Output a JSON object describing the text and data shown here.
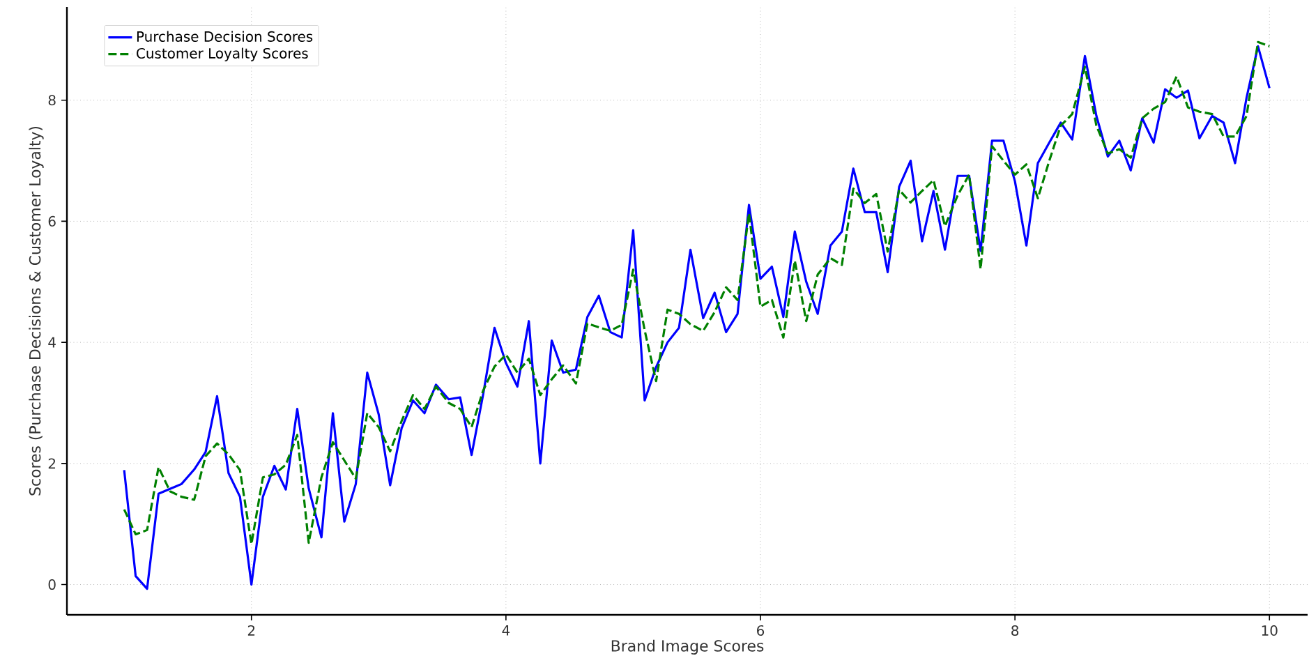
{
  "chart_data": {
    "type": "line",
    "xlabel": "Brand Image Scores",
    "ylabel": "Scores (Purchase Decisions & Customer Loyalty)",
    "x": [
      1.0,
      1.09,
      1.18,
      1.27,
      1.36,
      1.45,
      1.55,
      1.64,
      1.73,
      1.82,
      1.91,
      2.0,
      2.09,
      2.18,
      2.27,
      2.36,
      2.45,
      2.55,
      2.64,
      2.73,
      2.82,
      2.91,
      3.0,
      3.09,
      3.18,
      3.27,
      3.36,
      3.45,
      3.55,
      3.64,
      3.73,
      3.82,
      3.91,
      4.0,
      4.09,
      4.18,
      4.27,
      4.36,
      4.45,
      4.55,
      4.64,
      4.73,
      4.82,
      4.91,
      5.0,
      5.09,
      5.18,
      5.27,
      5.36,
      5.45,
      5.55,
      5.64,
      5.73,
      5.82,
      5.91,
      6.0,
      6.09,
      6.18,
      6.27,
      6.36,
      6.45,
      6.55,
      6.64,
      6.73,
      6.82,
      6.91,
      7.0,
      7.09,
      7.18,
      7.27,
      7.36,
      7.45,
      7.55,
      7.64,
      7.73,
      7.82,
      7.91,
      8.0,
      8.09,
      8.18,
      8.27,
      8.36,
      8.45,
      8.55,
      8.64,
      8.73,
      8.82,
      8.91,
      9.0,
      9.09,
      9.18,
      9.27,
      9.36,
      9.45,
      9.55,
      9.64,
      9.73,
      9.82,
      9.91,
      10.0
    ],
    "series": [
      {
        "name": "Purchase Decision Scores",
        "color": "#0000ff",
        "line_style": "solid",
        "values": [
          1.89,
          0.14,
          -0.07,
          1.5,
          1.58,
          1.66,
          1.9,
          2.19,
          3.11,
          1.84,
          1.45,
          0.0,
          1.45,
          1.96,
          1.57,
          2.9,
          1.59,
          0.78,
          2.83,
          1.04,
          1.66,
          3.5,
          2.81,
          1.64,
          2.58,
          3.04,
          2.83,
          3.3,
          3.06,
          3.09,
          2.14,
          3.13,
          4.24,
          3.66,
          3.27,
          4.35,
          2.0,
          4.03,
          3.5,
          3.55,
          4.42,
          4.77,
          4.17,
          4.08,
          5.85,
          3.04,
          3.59,
          4.0,
          4.24,
          5.53,
          4.4,
          4.82,
          4.17,
          4.47,
          6.27,
          5.05,
          5.25,
          4.42,
          5.83,
          5.0,
          4.47,
          5.6,
          5.83,
          6.87,
          6.15,
          6.15,
          5.16,
          6.57,
          7.0,
          5.67,
          6.5,
          5.53,
          6.75,
          6.75,
          5.51,
          7.33,
          7.33,
          6.66,
          5.6,
          6.96,
          7.3,
          7.63,
          7.35,
          8.73,
          7.74,
          7.07,
          7.33,
          6.84,
          7.7,
          7.3,
          8.18,
          8.04,
          8.16,
          7.37,
          7.74,
          7.63,
          6.96,
          8.04,
          8.89,
          8.2
        ]
      },
      {
        "name": "Customer Loyalty Scores",
        "color": "#008000",
        "line_style": "dashed",
        "values": [
          1.24,
          0.83,
          0.9,
          1.94,
          1.54,
          1.45,
          1.4,
          2.12,
          2.33,
          2.15,
          1.89,
          0.67,
          1.77,
          1.82,
          1.98,
          2.47,
          0.69,
          1.77,
          2.35,
          2.05,
          1.75,
          2.83,
          2.6,
          2.2,
          2.7,
          3.13,
          2.9,
          3.27,
          3.0,
          2.9,
          2.6,
          3.2,
          3.6,
          3.8,
          3.5,
          3.73,
          3.13,
          3.39,
          3.62,
          3.32,
          4.31,
          4.25,
          4.19,
          4.29,
          5.2,
          4.2,
          3.36,
          4.54,
          4.47,
          4.3,
          4.19,
          4.5,
          4.91,
          4.7,
          6.13,
          4.59,
          4.7,
          4.08,
          5.35,
          4.35,
          5.12,
          5.39,
          5.28,
          6.54,
          6.3,
          6.45,
          5.5,
          6.52,
          6.31,
          6.5,
          6.68,
          5.92,
          6.43,
          6.77,
          5.21,
          7.24,
          7.0,
          6.77,
          6.94,
          6.38,
          7.0,
          7.58,
          7.77,
          8.55,
          7.58,
          7.12,
          7.19,
          7.05,
          7.7,
          7.86,
          7.97,
          8.39,
          7.88,
          7.81,
          7.77,
          7.4,
          7.4,
          7.74,
          8.96,
          8.89
        ]
      }
    ],
    "xlim": [
      0.55,
      10.3
    ],
    "ylim": [
      -0.5,
      9.54
    ],
    "xticks": [
      2,
      4,
      6,
      8,
      10
    ],
    "yticks": [
      0,
      2,
      4,
      6,
      8
    ],
    "grid": true,
    "legend": "top left"
  }
}
